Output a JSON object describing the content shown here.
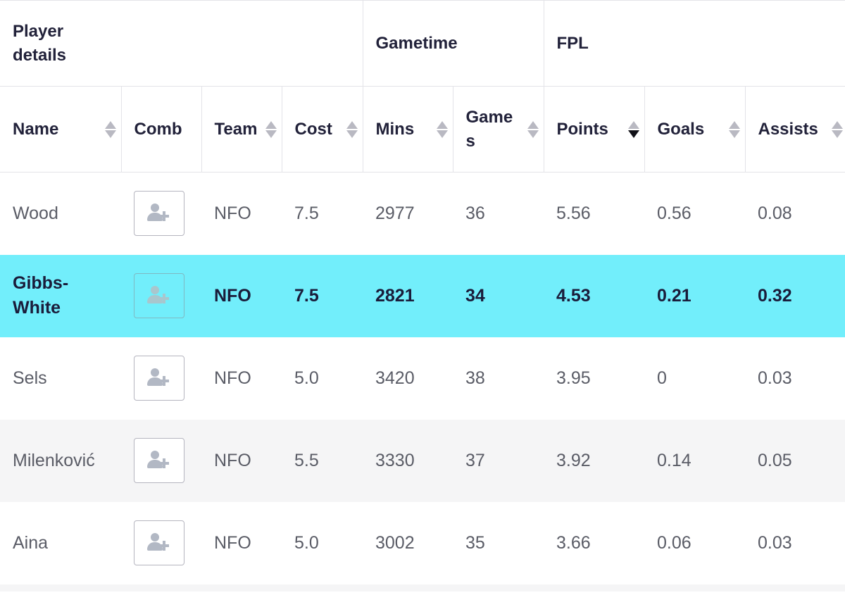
{
  "groups": {
    "player_details": "Player details",
    "gametime": "Gametime",
    "fpl": "FPL"
  },
  "columns": {
    "name": "Name",
    "comb": "Comb",
    "team": "Team",
    "cost": "Cost",
    "mins": "Mins",
    "games": "Games",
    "points": "Points",
    "goals": "Goals",
    "assists": "Assists"
  },
  "sort": {
    "column": "points",
    "direction": "desc"
  },
  "icons": {
    "comb_button": "user-plus-icon",
    "sort": "sort-arrows-icon"
  },
  "colors": {
    "highlight_row": "#72eefb",
    "alt_row": "#f5f5f6"
  },
  "rows": [
    {
      "name": "Wood",
      "team": "NFO",
      "cost": "7.5",
      "mins": "2977",
      "games": "36",
      "points": "5.56",
      "goals": "0.56",
      "assists": "0.08"
    },
    {
      "name": "Gibbs-White",
      "team": "NFO",
      "cost": "7.5",
      "mins": "2821",
      "games": "34",
      "points": "4.53",
      "goals": "0.21",
      "assists": "0.32",
      "highlighted": true
    },
    {
      "name": "Sels",
      "team": "NFO",
      "cost": "5.0",
      "mins": "3420",
      "games": "38",
      "points": "3.95",
      "goals": "0",
      "assists": "0.03"
    },
    {
      "name": "Milenković",
      "team": "NFO",
      "cost": "5.5",
      "mins": "3330",
      "games": "37",
      "points": "3.92",
      "goals": "0.14",
      "assists": "0.05"
    },
    {
      "name": "Aina",
      "team": "NFO",
      "cost": "5.0",
      "mins": "3002",
      "games": "35",
      "points": "3.66",
      "goals": "0.06",
      "assists": "0.03"
    }
  ]
}
